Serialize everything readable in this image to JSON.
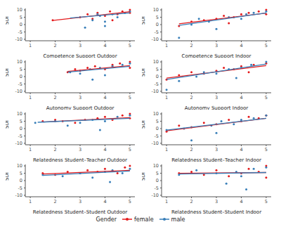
{
  "legend_title": "Gender",
  "legend": "bottom",
  "chart_data": [
    {
      "type": "scatter",
      "x_label": "Competence Support Outdoor",
      "y_label": "SDI",
      "xlim": [
        0.8,
        5.2
      ],
      "xticks": [
        1,
        2,
        3,
        4,
        5
      ],
      "ylim": [
        -11,
        11
      ],
      "yticks": [
        -10,
        -5,
        0,
        5,
        10
      ],
      "grid": false,
      "series": [
        {
          "name": "female",
          "color": "#e41a1c",
          "x": [
            1.9,
            3,
            3.3,
            3.5,
            3.7,
            4,
            4.2,
            4.5,
            4.7,
            5,
            5,
            4.3
          ],
          "values": [
            3,
            5,
            7,
            4,
            8,
            6,
            9,
            7,
            9,
            10,
            8,
            3
          ],
          "fit": {
            "x": [
              1.9,
              5
            ],
            "values": [
              2.8,
              8.8
            ]
          }
        },
        {
          "name": "male",
          "color": "#377eb8",
          "x": [
            3.2,
            3.5,
            3.8,
            4,
            4.3,
            4.5,
            4.8,
            5,
            4,
            3.7
          ],
          "values": [
            -2,
            3,
            6,
            -1,
            7,
            5,
            8,
            9,
            2,
            7
          ],
          "fit": {
            "x": [
              2.6,
              5
            ],
            "values": [
              4.5,
              8
            ]
          }
        }
      ]
    },
    {
      "type": "scatter",
      "x_label": "Competence Support Indoor",
      "y_label": "SDI",
      "xlim": [
        0.8,
        5.2
      ],
      "xticks": [
        1,
        2,
        3,
        4,
        5
      ],
      "ylim": [
        -11,
        11
      ],
      "yticks": [
        -10,
        -5,
        0,
        5,
        10
      ],
      "grid": false,
      "series": [
        {
          "name": "female",
          "color": "#e41a1c",
          "x": [
            1.5,
            2,
            2.5,
            3,
            3.3,
            3.7,
            4,
            4.3,
            4.7,
            5,
            5,
            3.5
          ],
          "values": [
            -1,
            2,
            3,
            4,
            6,
            5,
            7,
            8,
            9,
            10,
            7,
            1
          ],
          "fit": {
            "x": [
              1.5,
              5
            ],
            "values": [
              0.5,
              7.8
            ]
          }
        },
        {
          "name": "male",
          "color": "#377eb8",
          "x": [
            1.5,
            2,
            2.7,
            3,
            3.5,
            4,
            4.2,
            4.5,
            5,
            2.3
          ],
          "values": [
            -9,
            0,
            2,
            -3,
            5,
            4,
            7,
            8,
            9,
            4
          ],
          "fit": {
            "x": [
              1.5,
              5
            ],
            "values": [
              -0.5,
              8
            ]
          }
        }
      ]
    },
    {
      "type": "scatter",
      "x_label": "Autonomy Support Outdoor",
      "y_label": "SDI",
      "xlim": [
        0.8,
        5.2
      ],
      "xticks": [
        1,
        2,
        3,
        4,
        5
      ],
      "ylim": [
        -11,
        11
      ],
      "yticks": [
        -10,
        -5,
        0,
        5,
        10
      ],
      "grid": false,
      "series": [
        {
          "name": "female",
          "color": "#e41a1c",
          "x": [
            2.5,
            2.8,
            3,
            3.3,
            3.6,
            4,
            4.3,
            4.6,
            5,
            5
          ],
          "values": [
            3,
            5,
            4,
            6,
            7,
            5,
            8,
            9,
            10,
            6
          ],
          "fit": {
            "x": [
              2.5,
              5
            ],
            "values": [
              3.5,
              7.5
            ]
          }
        },
        {
          "name": "male",
          "color": "#377eb8",
          "x": [
            2.6,
            3,
            3.4,
            3.8,
            4,
            4.3,
            4.7,
            5,
            3.5
          ],
          "values": [
            3,
            2,
            5,
            6,
            1,
            7,
            8,
            9,
            -2
          ],
          "fit": {
            "x": [
              2.5,
              5
            ],
            "values": [
              3,
              7
            ]
          }
        }
      ]
    },
    {
      "type": "scatter",
      "x_label": "Autonomy Support Indoor",
      "y_label": "SDI",
      "xlim": [
        0.8,
        5.2
      ],
      "xticks": [
        1,
        2,
        3,
        4,
        5
      ],
      "ylim": [
        -11,
        11
      ],
      "yticks": [
        -10,
        -5,
        0,
        5,
        10
      ],
      "grid": false,
      "series": [
        {
          "name": "female",
          "color": "#e41a1c",
          "x": [
            1,
            1.5,
            2,
            2.5,
            3,
            3.3,
            3.7,
            4,
            4.5,
            5,
            4.3
          ],
          "values": [
            -2,
            1,
            3,
            2,
            4,
            6,
            5,
            7,
            8,
            9,
            3
          ],
          "fit": {
            "x": [
              1,
              5
            ],
            "values": [
              -1,
              7.5
            ]
          }
        },
        {
          "name": "male",
          "color": "#377eb8",
          "x": [
            1,
            1.5,
            2.2,
            2.5,
            3,
            3.5,
            4,
            4.4,
            5,
            3.8
          ],
          "values": [
            -9,
            -3,
            0,
            3,
            2,
            5,
            6,
            8,
            10,
            -1
          ],
          "fit": {
            "x": [
              1,
              5
            ],
            "values": [
              -2,
              8.5
            ]
          }
        }
      ]
    },
    {
      "type": "scatter",
      "x_label": "Relatedness Student–Teacher Outdoor",
      "y_label": "SDI",
      "xlim": [
        0.8,
        5.2
      ],
      "xticks": [
        1,
        2,
        3,
        4,
        5
      ],
      "ylim": [
        -11,
        11
      ],
      "yticks": [
        -10,
        -5,
        0,
        5,
        10
      ],
      "grid": false,
      "series": [
        {
          "name": "female",
          "color": "#e41a1c",
          "x": [
            1.5,
            2,
            2.3,
            2.8,
            3.2,
            3.7,
            4,
            4.3,
            4.7,
            5,
            5
          ],
          "values": [
            5,
            6,
            5,
            4,
            6,
            7,
            8,
            6,
            9,
            10,
            7
          ],
          "fit": {
            "x": [
              1.5,
              5
            ],
            "values": [
              4.5,
              7.5
            ]
          }
        },
        {
          "name": "male",
          "color": "#377eb8",
          "x": [
            1.2,
            2,
            2.5,
            3,
            3.5,
            4,
            4.5,
            5,
            3.8
          ],
          "values": [
            4,
            5,
            2,
            4,
            6,
            5,
            8,
            9,
            -1
          ],
          "fit": {
            "x": [
              1.3,
              5
            ],
            "values": [
              4.3,
              7
            ]
          }
        }
      ]
    },
    {
      "type": "scatter",
      "x_label": "Relatedness Student–Teacher Indoor",
      "y_label": "SDI",
      "xlim": [
        0.8,
        5.2
      ],
      "xticks": [
        1,
        2,
        3,
        4,
        5
      ],
      "ylim": [
        -11,
        11
      ],
      "yticks": [
        -10,
        -5,
        0,
        5,
        10
      ],
      "grid": false,
      "series": [
        {
          "name": "female",
          "color": "#e41a1c",
          "x": [
            1,
            1.5,
            2,
            2.5,
            3,
            3.5,
            4,
            4.3,
            4.7,
            5
          ],
          "values": [
            -2,
            2,
            1,
            4,
            3,
            6,
            5,
            8,
            7,
            9
          ],
          "fit": {
            "x": [
              1,
              5
            ],
            "values": [
              -1.5,
              7
            ]
          }
        },
        {
          "name": "male",
          "color": "#377eb8",
          "x": [
            1,
            1.7,
            2,
            2.8,
            3.2,
            3.7,
            4,
            4.5,
            5,
            3
          ],
          "values": [
            -1,
            0,
            -8,
            2,
            5,
            3,
            6,
            7,
            9,
            -3
          ],
          "fit": {
            "x": [
              1,
              5
            ],
            "values": [
              -1,
              7
            ]
          }
        }
      ]
    },
    {
      "type": "scatter",
      "x_label": "Relatedness Student–Student Outdoor",
      "y_label": "SDI",
      "xlim": [
        0.8,
        5.2
      ],
      "xticks": [
        1,
        2,
        3,
        4,
        5
      ],
      "ylim": [
        -11,
        11
      ],
      "yticks": [
        -10,
        -5,
        0,
        5,
        10
      ],
      "grid": false,
      "series": [
        {
          "name": "female",
          "color": "#e41a1c",
          "x": [
            1.5,
            2,
            2.5,
            3,
            3.3,
            3.7,
            4,
            4.5,
            4.8,
            5
          ],
          "values": [
            5,
            4,
            6,
            5,
            7,
            6,
            8,
            5,
            9,
            10
          ],
          "fit": {
            "x": [
              1.5,
              5
            ],
            "values": [
              4.5,
              7
            ]
          }
        },
        {
          "name": "male",
          "color": "#377eb8",
          "x": [
            1.5,
            2.3,
            3,
            3.5,
            4,
            4.3,
            4.7,
            5,
            4.2
          ],
          "values": [
            4,
            3,
            5,
            2,
            6,
            7,
            5,
            8,
            -1
          ],
          "fit": {
            "x": [
              1.5,
              5
            ],
            "values": [
              3.5,
              6.5
            ]
          }
        }
      ]
    },
    {
      "type": "scatter",
      "x_label": "Relatedness Student–Student Indoor",
      "y_label": "SDI",
      "xlim": [
        0.8,
        5.2
      ],
      "xticks": [
        1,
        2,
        3,
        4,
        5
      ],
      "ylim": [
        -11,
        11
      ],
      "yticks": [
        -10,
        -5,
        0,
        5,
        10
      ],
      "grid": false,
      "series": [
        {
          "name": "female",
          "color": "#e41a1c",
          "x": [
            1.5,
            2,
            2.5,
            3,
            3.5,
            4,
            4.3,
            4.7,
            5,
            5
          ],
          "values": [
            5,
            6,
            4,
            7,
            3,
            5,
            8,
            6,
            10,
            2
          ],
          "fit": {
            "x": [
              1.5,
              5
            ],
            "values": [
              5,
              5.5
            ]
          }
        },
        {
          "name": "male",
          "color": "#377eb8",
          "x": [
            1.5,
            2.2,
            3,
            3.4,
            3.8,
            4,
            4.5,
            5,
            4.2
          ],
          "values": [
            4,
            7,
            5,
            -2,
            6,
            3,
            8,
            9,
            -6
          ],
          "fit": {
            "x": [
              1.5,
              5
            ],
            "values": [
              4.5,
              5.5
            ]
          }
        }
      ]
    }
  ]
}
